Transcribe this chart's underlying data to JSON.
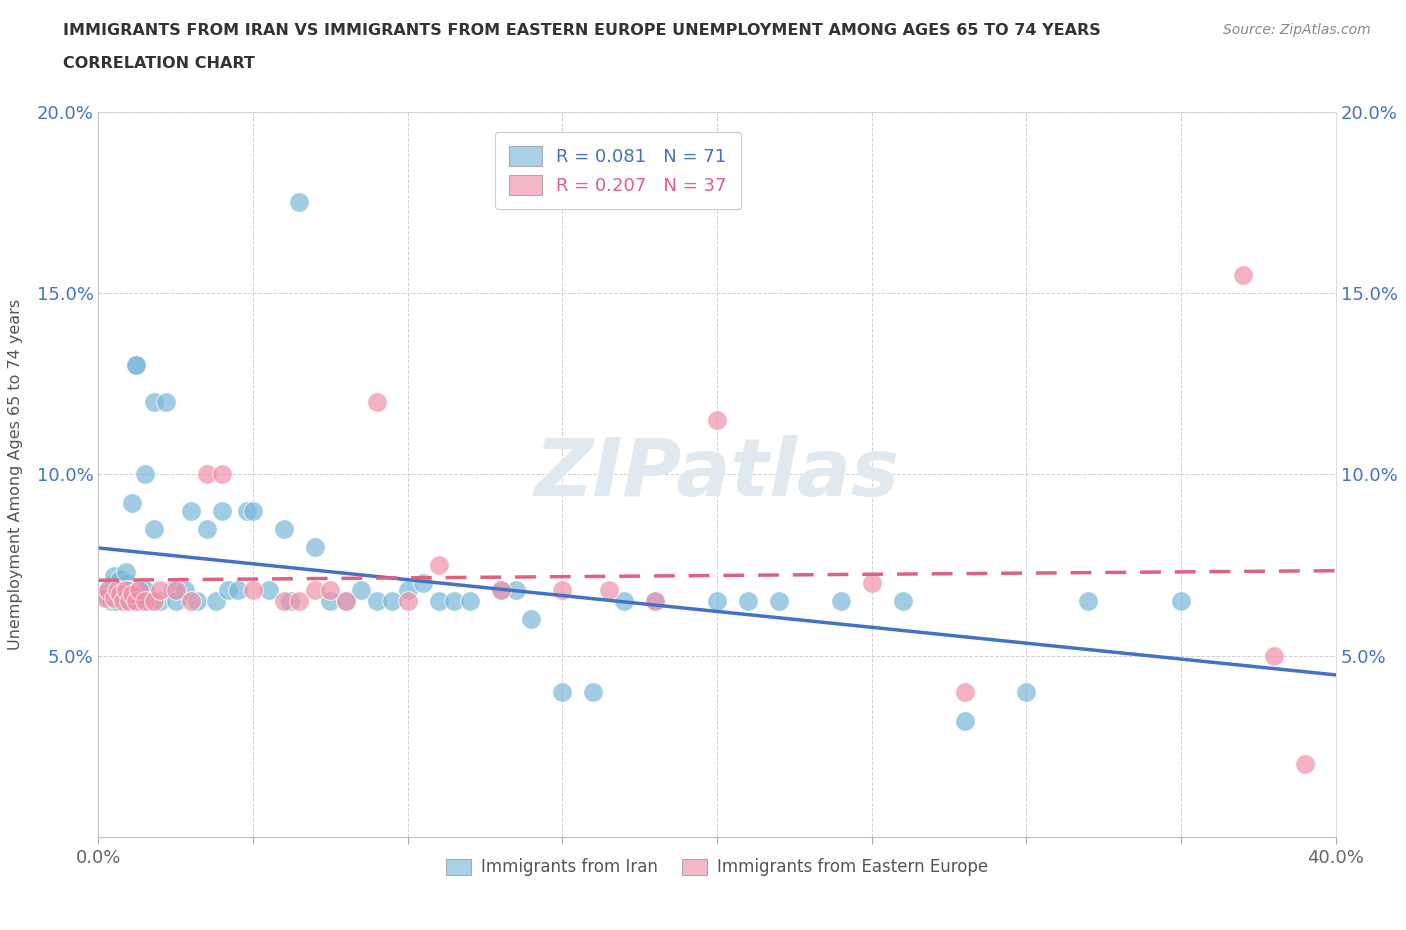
{
  "title_line1": "IMMIGRANTS FROM IRAN VS IMMIGRANTS FROM EASTERN EUROPE UNEMPLOYMENT AMONG AGES 65 TO 74 YEARS",
  "title_line2": "CORRELATION CHART",
  "source": "Source: ZipAtlas.com",
  "ylabel": "Unemployment Among Ages 65 to 74 years",
  "xlim": [
    0,
    0.4
  ],
  "ylim": [
    0,
    0.2
  ],
  "xticks": [
    0.0,
    0.05,
    0.1,
    0.15,
    0.2,
    0.25,
    0.3,
    0.35,
    0.4
  ],
  "yticks": [
    0.0,
    0.05,
    0.1,
    0.15,
    0.2
  ],
  "xtick_labels": [
    "0.0%",
    "",
    "",
    "",
    "",
    "",
    "",
    "",
    "40.0%"
  ],
  "ytick_labels": [
    "",
    "5.0%",
    "10.0%",
    "15.0%",
    "20.0%"
  ],
  "legend1_color": "#a8d0e8",
  "legend2_color": "#f4b8c8",
  "blue_R": 0.081,
  "pink_R": 0.207,
  "blue_color": "#7ab8d9",
  "pink_color": "#f090a8",
  "blue_line_color": "#4472c4",
  "pink_line_color": "#e06080",
  "background_color": "#ffffff",
  "watermark": "ZIPatlas",
  "blue_scatter_x": [
    0.002,
    0.003,
    0.004,
    0.005,
    0.005,
    0.006,
    0.006,
    0.007,
    0.007,
    0.008,
    0.008,
    0.009,
    0.009,
    0.01,
    0.01,
    0.011,
    0.012,
    0.012,
    0.013,
    0.013,
    0.014,
    0.015,
    0.015,
    0.016,
    0.018,
    0.018,
    0.02,
    0.022,
    0.024,
    0.025,
    0.028,
    0.03,
    0.032,
    0.035,
    0.038,
    0.04,
    0.042,
    0.045,
    0.048,
    0.05,
    0.055,
    0.06,
    0.062,
    0.065,
    0.07,
    0.075,
    0.08,
    0.085,
    0.09,
    0.095,
    0.1,
    0.105,
    0.11,
    0.115,
    0.12,
    0.13,
    0.135,
    0.14,
    0.15,
    0.16,
    0.17,
    0.18,
    0.2,
    0.21,
    0.22,
    0.24,
    0.26,
    0.28,
    0.3,
    0.32,
    0.35
  ],
  "blue_scatter_y": [
    0.067,
    0.068,
    0.065,
    0.07,
    0.072,
    0.068,
    0.065,
    0.069,
    0.071,
    0.068,
    0.066,
    0.07,
    0.073,
    0.068,
    0.065,
    0.092,
    0.13,
    0.13,
    0.068,
    0.065,
    0.068,
    0.068,
    0.1,
    0.065,
    0.085,
    0.12,
    0.065,
    0.12,
    0.068,
    0.065,
    0.068,
    0.09,
    0.065,
    0.085,
    0.065,
    0.09,
    0.068,
    0.068,
    0.09,
    0.09,
    0.068,
    0.085,
    0.065,
    0.175,
    0.08,
    0.065,
    0.065,
    0.068,
    0.065,
    0.065,
    0.068,
    0.07,
    0.065,
    0.065,
    0.065,
    0.068,
    0.068,
    0.06,
    0.04,
    0.04,
    0.065,
    0.065,
    0.065,
    0.065,
    0.065,
    0.065,
    0.065,
    0.032,
    0.04,
    0.065,
    0.065
  ],
  "pink_scatter_x": [
    0.002,
    0.003,
    0.005,
    0.006,
    0.007,
    0.008,
    0.009,
    0.01,
    0.011,
    0.012,
    0.013,
    0.015,
    0.018,
    0.02,
    0.025,
    0.03,
    0.035,
    0.04,
    0.05,
    0.06,
    0.065,
    0.07,
    0.075,
    0.08,
    0.09,
    0.1,
    0.11,
    0.13,
    0.15,
    0.165,
    0.18,
    0.2,
    0.25,
    0.28,
    0.37,
    0.38,
    0.39
  ],
  "pink_scatter_y": [
    0.066,
    0.068,
    0.066,
    0.068,
    0.067,
    0.065,
    0.068,
    0.065,
    0.067,
    0.065,
    0.068,
    0.065,
    0.065,
    0.068,
    0.068,
    0.065,
    0.1,
    0.1,
    0.068,
    0.065,
    0.065,
    0.068,
    0.068,
    0.065,
    0.12,
    0.065,
    0.075,
    0.068,
    0.068,
    0.068,
    0.065,
    0.115,
    0.07,
    0.04,
    0.155,
    0.05,
    0.02
  ]
}
